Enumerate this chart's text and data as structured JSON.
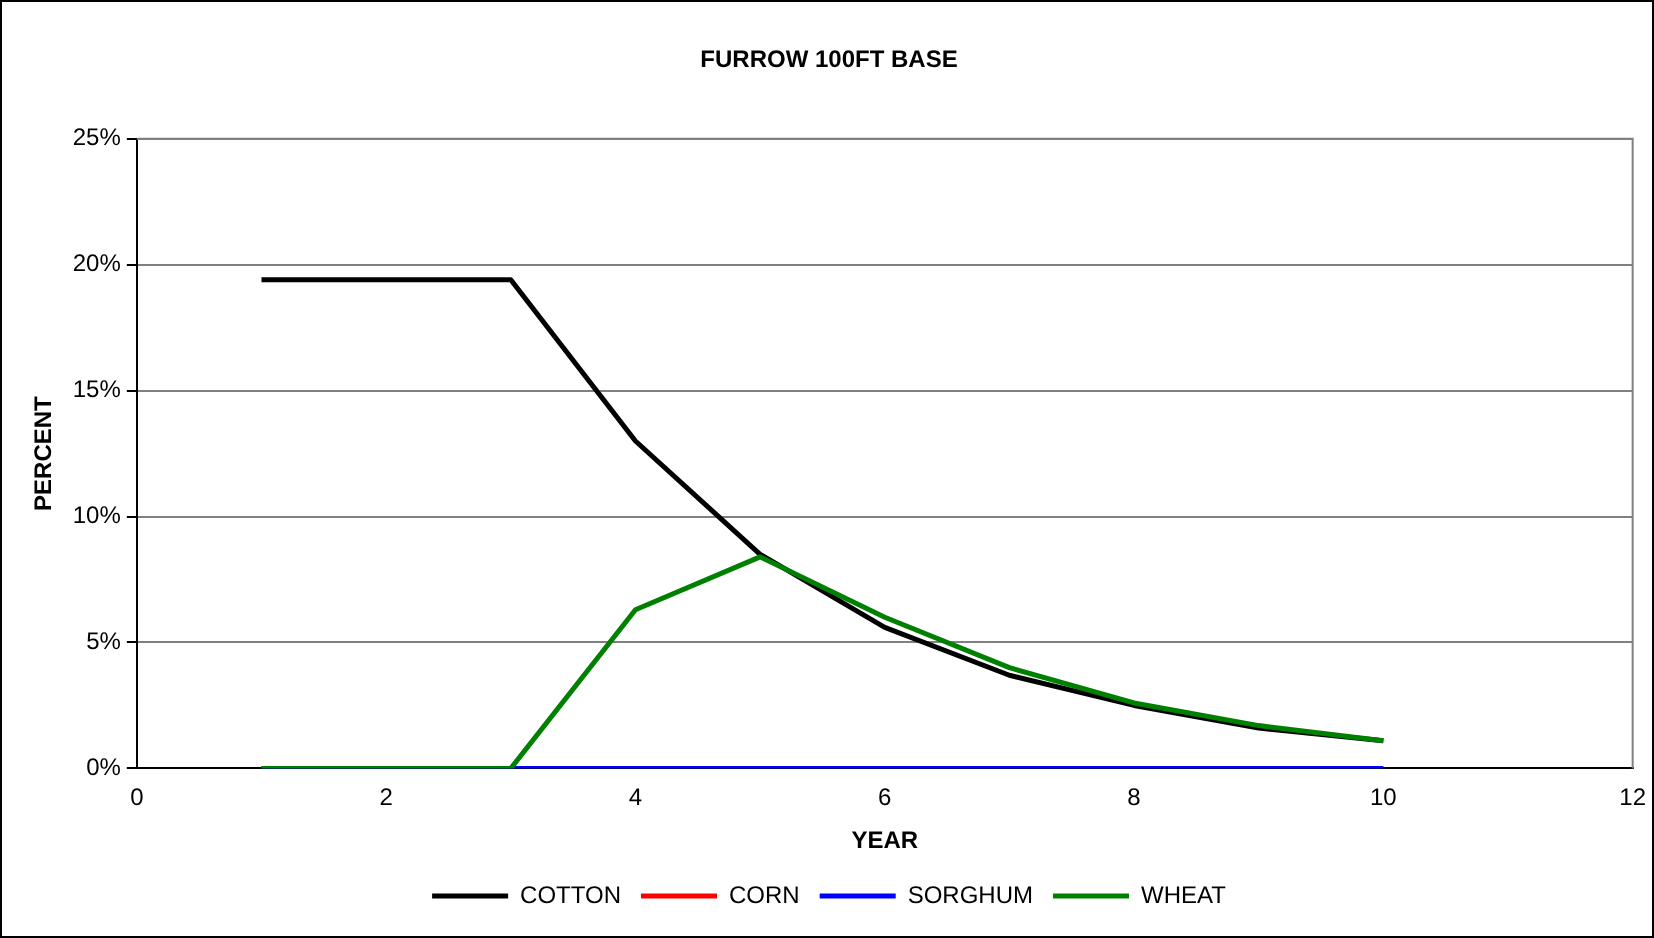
{
  "chart_data": {
    "type": "line",
    "title": "FURROW 100FT BASE",
    "xlabel": "YEAR",
    "ylabel": "PERCENT",
    "x": [
      1,
      2,
      3,
      4,
      5,
      6,
      7,
      8,
      9,
      10
    ],
    "series": [
      {
        "name": "COTTON",
        "color": "#000000",
        "values": [
          19.4,
          19.4,
          19.4,
          13,
          8.5,
          5.6,
          3.7,
          2.5,
          1.6,
          1.1
        ]
      },
      {
        "name": "CORN",
        "color": "#ff0000",
        "values": [
          null,
          null,
          null,
          null,
          null,
          null,
          null,
          null,
          null,
          null
        ]
      },
      {
        "name": "SORGHUM",
        "color": "#0000ff",
        "values": [
          0,
          0,
          0,
          0,
          0,
          0,
          0,
          0,
          0,
          0
        ]
      },
      {
        "name": "WHEAT",
        "color": "#008000",
        "values": [
          0,
          0,
          0,
          6.3,
          8.4,
          6,
          4,
          2.6,
          1.7,
          1.1
        ]
      }
    ],
    "xlim": [
      0,
      12
    ],
    "xticks": [
      0,
      2,
      4,
      6,
      8,
      10,
      12
    ],
    "ylim": [
      0,
      25
    ],
    "yticks": [
      {
        "value": 0,
        "label": "0%"
      },
      {
        "value": 5,
        "label": "5%"
      },
      {
        "value": 10,
        "label": "10%"
      },
      {
        "value": 15,
        "label": "15%"
      },
      {
        "value": 20,
        "label": "20%"
      },
      {
        "value": 25,
        "label": "25%"
      }
    ],
    "grid": "y",
    "legend": "bottom",
    "marker": "none",
    "line_style": "solid"
  }
}
